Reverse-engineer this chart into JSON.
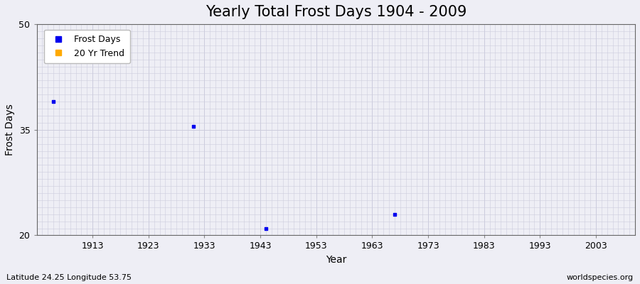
{
  "title": "Yearly Total Frost Days 1904 - 2009",
  "xlabel": "Year",
  "ylabel": "Frost Days",
  "xlim": [
    1903,
    2010
  ],
  "ylim": [
    20,
    50
  ],
  "yticks": [
    20,
    35,
    50
  ],
  "xticks": [
    1913,
    1923,
    1933,
    1943,
    1953,
    1963,
    1973,
    1983,
    1993,
    2003
  ],
  "scatter_x": [
    1906,
    1931,
    1944,
    1967
  ],
  "scatter_y": [
    39.0,
    35.5,
    21.0,
    23.0
  ],
  "scatter_color": "#0000ee",
  "scatter_size": 6,
  "background_color": "#eeeef5",
  "grid_color": "#ccccdd",
  "legend_labels": [
    "Frost Days",
    "20 Yr Trend"
  ],
  "legend_colors": [
    "#0000ee",
    "#ffaa00"
  ],
  "bottom_left_text": "Latitude 24.25 Longitude 53.75",
  "bottom_right_text": "worldspecies.org",
  "title_fontsize": 15,
  "axis_fontsize": 10,
  "tick_fontsize": 9
}
